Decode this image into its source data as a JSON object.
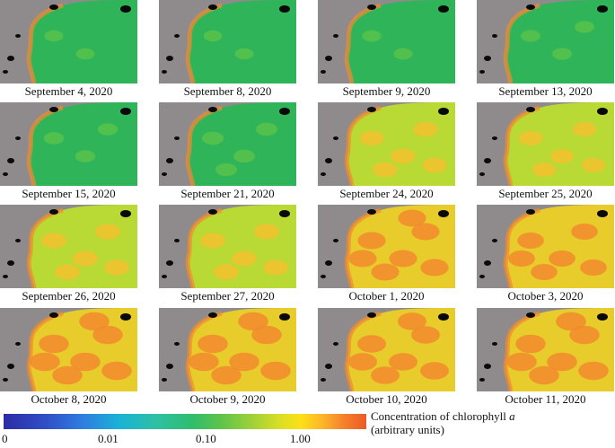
{
  "panels": [
    {
      "date": "September 4, 2020",
      "level": 0.05
    },
    {
      "date": "September 8, 2020",
      "level": 0.05
    },
    {
      "date": "September 9, 2020",
      "level": 0.08
    },
    {
      "date": "September 13, 2020",
      "level": 0.12
    },
    {
      "date": "September 15, 2020",
      "level": 0.15
    },
    {
      "date": "September 21, 2020",
      "level": 0.25
    },
    {
      "date": "September 24, 2020",
      "level": 0.45
    },
    {
      "date": "September 25, 2020",
      "level": 0.4
    },
    {
      "date": "September 26, 2020",
      "level": 0.5
    },
    {
      "date": "September 27, 2020",
      "level": 0.5
    },
    {
      "date": "October 1, 2020",
      "level": 0.7
    },
    {
      "date": "October 3, 2020",
      "level": 0.6
    },
    {
      "date": "October 8, 2020",
      "level": 0.85
    },
    {
      "date": "October 9, 2020",
      "level": 0.85
    },
    {
      "date": "October 10, 2020",
      "level": 0.75
    },
    {
      "date": "October 11, 2020",
      "level": 0.85
    }
  ],
  "colorbar": {
    "title_prefix": "Concentration of chlorophyll",
    "title_var": "a",
    "units": "(arbitrary units)",
    "ticks": [
      "0",
      "0.01",
      "0.10",
      "1.00"
    ],
    "colors": [
      "#2c2ca6",
      "#2f7ee0",
      "#2ec0a4",
      "#2fbd6c",
      "#9bd03a",
      "#fde016",
      "#f57f2c",
      "#ec5a25"
    ]
  },
  "colors": {
    "land": "#8f8b8d",
    "clouds": "#0a0a0a",
    "low": "#2fb45a",
    "mid": "#b9d934",
    "high": "#f28a2e"
  }
}
